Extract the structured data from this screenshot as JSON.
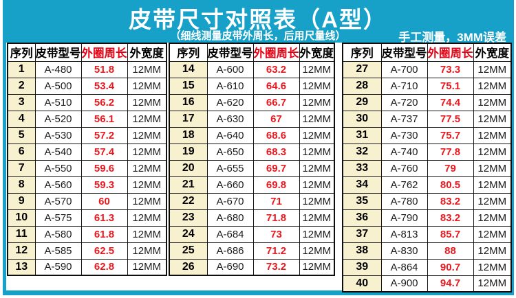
{
  "header": {
    "title": "皮带尺寸对照表（A型）",
    "subtitle": "（细线测量皮带外周长，后用尺量线）",
    "note": "手工测量，3MM误差"
  },
  "columns": [
    "序列",
    "皮带型号",
    "外圈周长",
    "外宽度"
  ],
  "tables": [
    {
      "rows": [
        [
          "1",
          "A-480",
          "51.8",
          "12MM"
        ],
        [
          "2",
          "A-500",
          "53.4",
          "12MM"
        ],
        [
          "3",
          "A-510",
          "56.2",
          "12MM"
        ],
        [
          "4",
          "A-520",
          "56.1",
          "12MM"
        ],
        [
          "5",
          "A-530",
          "57.2",
          "12MM"
        ],
        [
          "6",
          "A-540",
          "57.4",
          "12MM"
        ],
        [
          "7",
          "A-550",
          "59.6",
          "12MM"
        ],
        [
          "8",
          "A-560",
          "59.3",
          "12MM"
        ],
        [
          "9",
          "A-570",
          "60",
          "12MM"
        ],
        [
          "10",
          "A-575",
          "61.3",
          "12MM"
        ],
        [
          "11",
          "A-580",
          "61.8",
          "12MM"
        ],
        [
          "12",
          "A-585",
          "62.5",
          "12MM"
        ],
        [
          "13",
          "A-590",
          "62.8",
          "12MM"
        ]
      ]
    },
    {
      "rows": [
        [
          "14",
          "A-600",
          "63.2",
          "12MM"
        ],
        [
          "15",
          "A-610",
          "64.6",
          "12MM"
        ],
        [
          "16",
          "A-620",
          "66.7",
          "12MM"
        ],
        [
          "17",
          "A-630",
          "67",
          "12MM"
        ],
        [
          "18",
          "A-640",
          "68.6",
          "12MM"
        ],
        [
          "19",
          "A-650",
          "68.3",
          "12MM"
        ],
        [
          "20",
          "A-655",
          "69.7",
          "12MM"
        ],
        [
          "21",
          "A-660",
          "69.8",
          "12MM"
        ],
        [
          "22",
          "A-670",
          "71",
          "12MM"
        ],
        [
          "23",
          "A-680",
          "71.8",
          "12MM"
        ],
        [
          "24",
          "A-684",
          "73",
          "12MM"
        ],
        [
          "25",
          "A-686",
          "71.2",
          "12MM"
        ],
        [
          "26",
          "A-690",
          "73.2",
          "12MM"
        ]
      ]
    },
    {
      "rows": [
        [
          "27",
          "A-700",
          "73.3",
          "12MM"
        ],
        [
          "28",
          "A-710",
          "75.1",
          "12MM"
        ],
        [
          "29",
          "A-720",
          "74.4",
          "12MM"
        ],
        [
          "30",
          "A-737",
          "77.5",
          "12MM"
        ],
        [
          "31",
          "A-730",
          "75.7",
          "12MM"
        ],
        [
          "32",
          "A-740",
          "77.8",
          "12MM"
        ],
        [
          "33",
          "A-760",
          "79",
          "12MM"
        ],
        [
          "34",
          "A-762",
          "80.5",
          "12MM"
        ],
        [
          "35",
          "A-780",
          "83.2",
          "12MM"
        ],
        [
          "36",
          "A-790",
          "83.2",
          "12MM"
        ],
        [
          "37",
          "A-813",
          "85.7",
          "12MM"
        ],
        [
          "38",
          "A-830",
          "88",
          "12MM"
        ],
        [
          "39",
          "A-864",
          "90.7",
          "12MM"
        ],
        [
          "40",
          "A-900",
          "94.7",
          "12MM"
        ]
      ]
    }
  ],
  "colors": {
    "teal": "#18a1c8",
    "red": "#e8191f",
    "red_header": "#e60012",
    "cream": "#f8f1d0"
  }
}
